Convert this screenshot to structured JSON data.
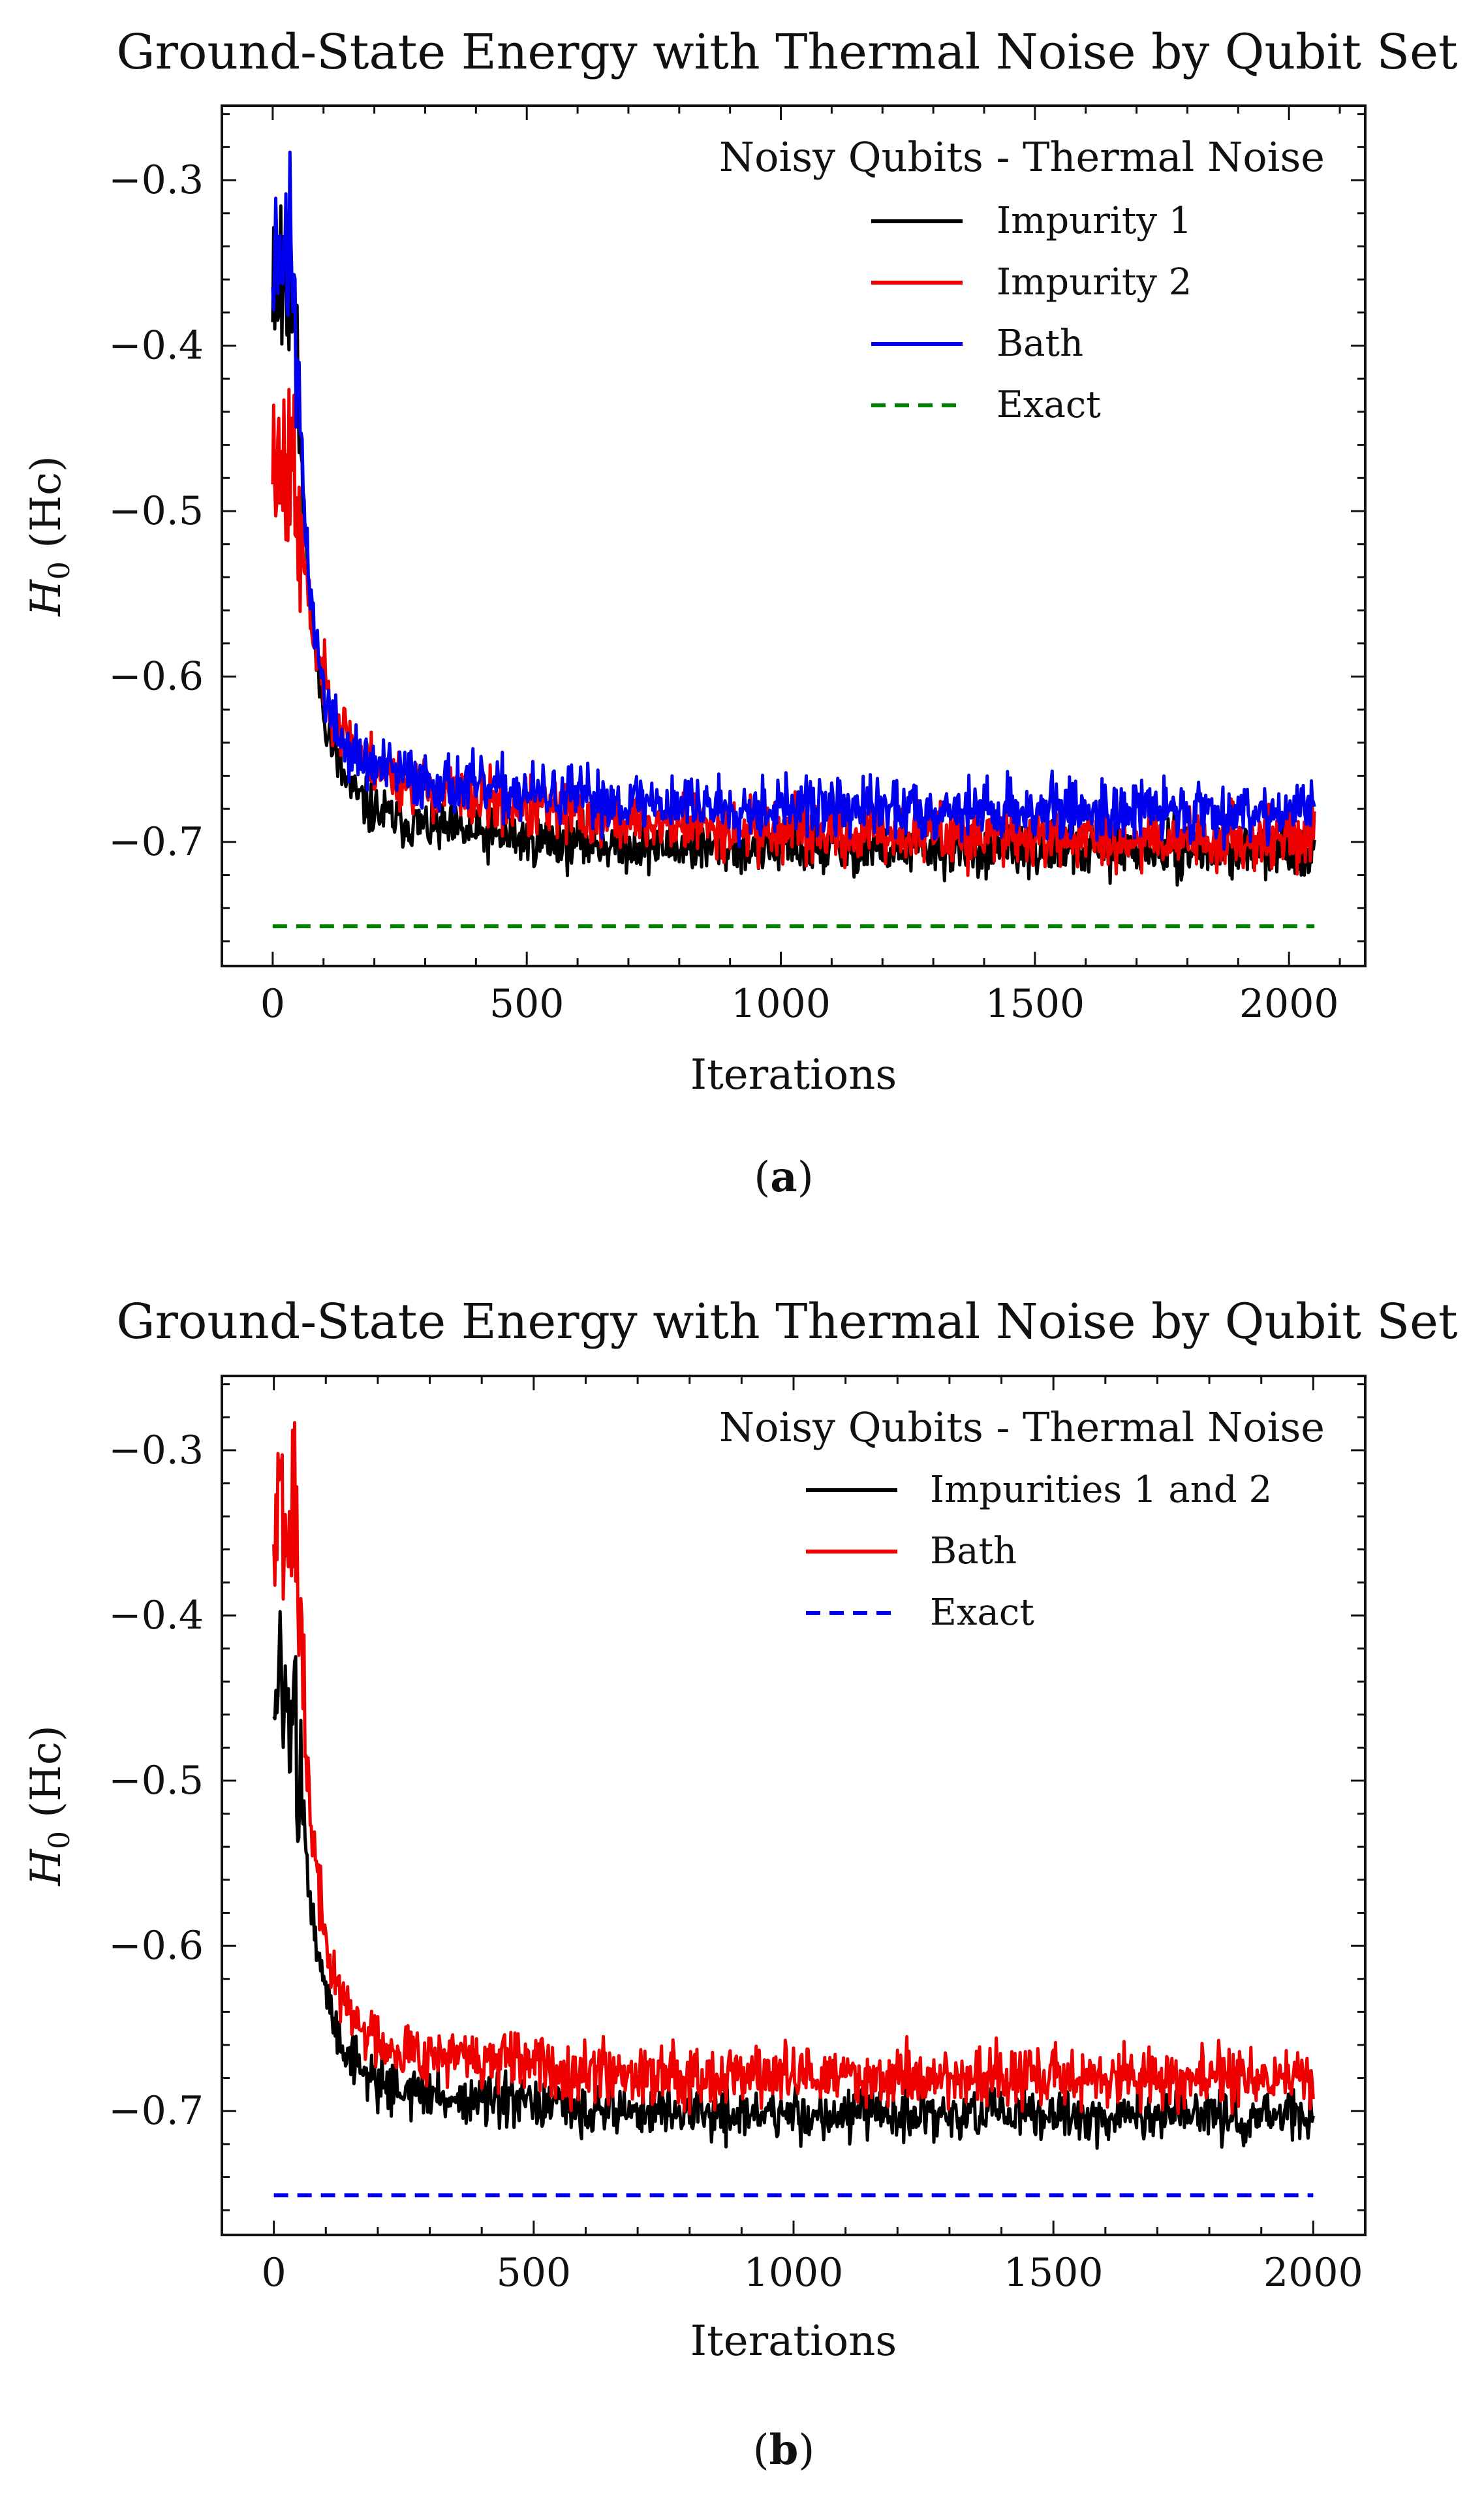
{
  "chart_data": [
    {
      "type": "line",
      "panel": "a",
      "caption": "(a)",
      "title": "Ground-State Energy with Thermal Noise by Qubit Set",
      "xlabel": "Iterations",
      "ylabel": "H0 (Hc)",
      "ylabel_main": "H",
      "ylabel_sub": "0",
      "ylabel_unit": " (Hc)",
      "xlim": [
        -100,
        2150
      ],
      "ylim": [
        -0.775,
        -0.255
      ],
      "xticks": [
        0,
        500,
        1000,
        1500,
        2000
      ],
      "xtick_labels": [
        "0",
        "500",
        "1000",
        "1500",
        "2000"
      ],
      "yticks": [
        -0.3,
        -0.4,
        -0.5,
        -0.6,
        -0.7
      ],
      "ytick_labels": [
        "−0.3",
        "−0.4",
        "−0.5",
        "−0.6",
        "−0.7"
      ],
      "legend_title": "Noisy Qubits - Thermal Noise",
      "legend_position": "top-right",
      "x_max": 2050,
      "series": [
        {
          "name": "Impurity 1",
          "color": "#000000",
          "style": "solid",
          "start": -0.35,
          "plateau": -0.705,
          "knee": -0.66,
          "tau_fast": 35,
          "tau_slow": 260,
          "noise": 0.006,
          "seed": 11
        },
        {
          "name": "Impurity 2",
          "color": "#ee0000",
          "style": "solid",
          "start": -0.46,
          "plateau": -0.698,
          "knee": -0.63,
          "tau_fast": 45,
          "tau_slow": 380,
          "noise": 0.007,
          "seed": 23
        },
        {
          "name": "Bath",
          "color": "#0000ee",
          "style": "solid",
          "start": -0.33,
          "plateau": -0.681,
          "knee": -0.635,
          "tau_fast": 30,
          "tau_slow": 330,
          "noise": 0.007,
          "seed": 37
        },
        {
          "name": "Exact",
          "color": "#008000",
          "style": "dashed",
          "constant": -0.751
        }
      ]
    },
    {
      "type": "line",
      "panel": "b",
      "caption": "(b)",
      "title": "Ground-State Energy with Thermal Noise by Qubit Set",
      "xlabel": "Iterations",
      "ylabel": "H0 (Hc)",
      "ylabel_main": "H",
      "ylabel_sub": "0",
      "ylabel_unit": " (Hc)",
      "xlim": [
        -100,
        2100
      ],
      "ylim": [
        -0.775,
        -0.255
      ],
      "xticks": [
        0,
        500,
        1000,
        1500,
        2000
      ],
      "xtick_labels": [
        "0",
        "500",
        "1000",
        "1500",
        "2000"
      ],
      "yticks": [
        -0.3,
        -0.4,
        -0.5,
        -0.6,
        -0.7
      ],
      "ytick_labels": [
        "−0.3",
        "−0.4",
        "−0.5",
        "−0.6",
        "−0.7"
      ],
      "legend_title": "Noisy Qubits - Thermal Noise",
      "legend_position": "top-right",
      "x_max": 2000,
      "series": [
        {
          "name": "Impurities 1 and 2",
          "color": "#000000",
          "style": "solid",
          "start": -0.45,
          "plateau": -0.703,
          "knee": -0.665,
          "tau_fast": 40,
          "tau_slow": 270,
          "noise": 0.006,
          "seed": 51
        },
        {
          "name": "Bath",
          "color": "#ee0000",
          "style": "solid",
          "start": -0.33,
          "plateau": -0.68,
          "knee": -0.64,
          "tau_fast": 35,
          "tau_slow": 300,
          "noise": 0.007,
          "seed": 67
        },
        {
          "name": "Exact",
          "color": "#0000ee",
          "style": "dashed",
          "constant": -0.751
        }
      ]
    }
  ]
}
